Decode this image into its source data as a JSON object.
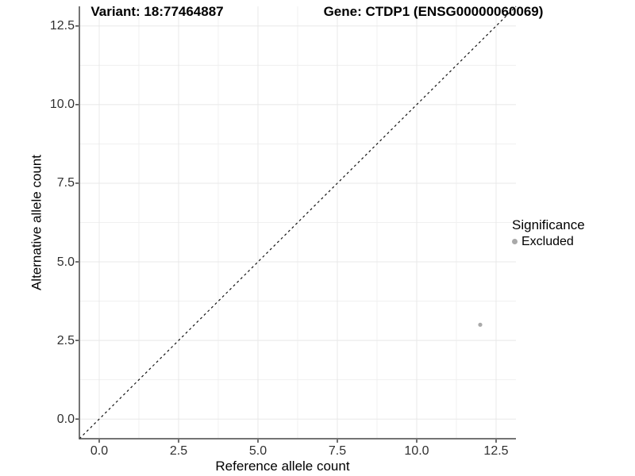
{
  "chart_data": {
    "type": "scatter",
    "title_left": "Variant: 18:77464887",
    "title_right": "Gene: CTDP1 (ENSG00000060069)",
    "xlabel": "Reference allele count",
    "ylabel": "Alternative allele count",
    "xlim": [
      -0.625,
      13.125
    ],
    "ylim": [
      -0.625,
      13.125
    ],
    "x_ticks": [
      0,
      2.5,
      5,
      7.5,
      10,
      12.5
    ],
    "y_ticks": [
      0,
      2.5,
      5,
      7.5,
      10,
      12.5
    ],
    "x_tick_labels": [
      "0.0",
      "2.5",
      "5.0",
      "7.5",
      "10.0",
      "12.5"
    ],
    "y_tick_labels": [
      "0.0",
      "2.5",
      "5.0",
      "7.5",
      "10.0",
      "12.5"
    ],
    "x_minor_ticks": [
      1.25,
      3.75,
      6.25,
      8.75,
      11.25
    ],
    "y_minor_ticks": [
      1.25,
      3.75,
      6.25,
      8.75,
      11.25
    ],
    "grid": "major and minor, light gray, white background",
    "legend_position": "right",
    "series": [
      {
        "name": "Excluded",
        "color": "#a9a9a9",
        "points": [
          {
            "x": 12,
            "y": 3
          }
        ]
      }
    ],
    "reference_line": {
      "type": "identity y=x",
      "slope": 1,
      "intercept": 0,
      "style": "dashed",
      "color": "#141414"
    }
  },
  "legend": {
    "title": "Significance",
    "items": [
      {
        "label": "Excluded",
        "color": "#a9a9a9",
        "marker": "circle-icon"
      }
    ]
  },
  "colors": {
    "background": "#ffffff",
    "grid_major": "#e8e8e8",
    "grid_minor": "#f0f0f0",
    "axis_line": "#474747",
    "tick_mark": "#333333",
    "tick_text": "#303030",
    "title_text": "#000000"
  }
}
